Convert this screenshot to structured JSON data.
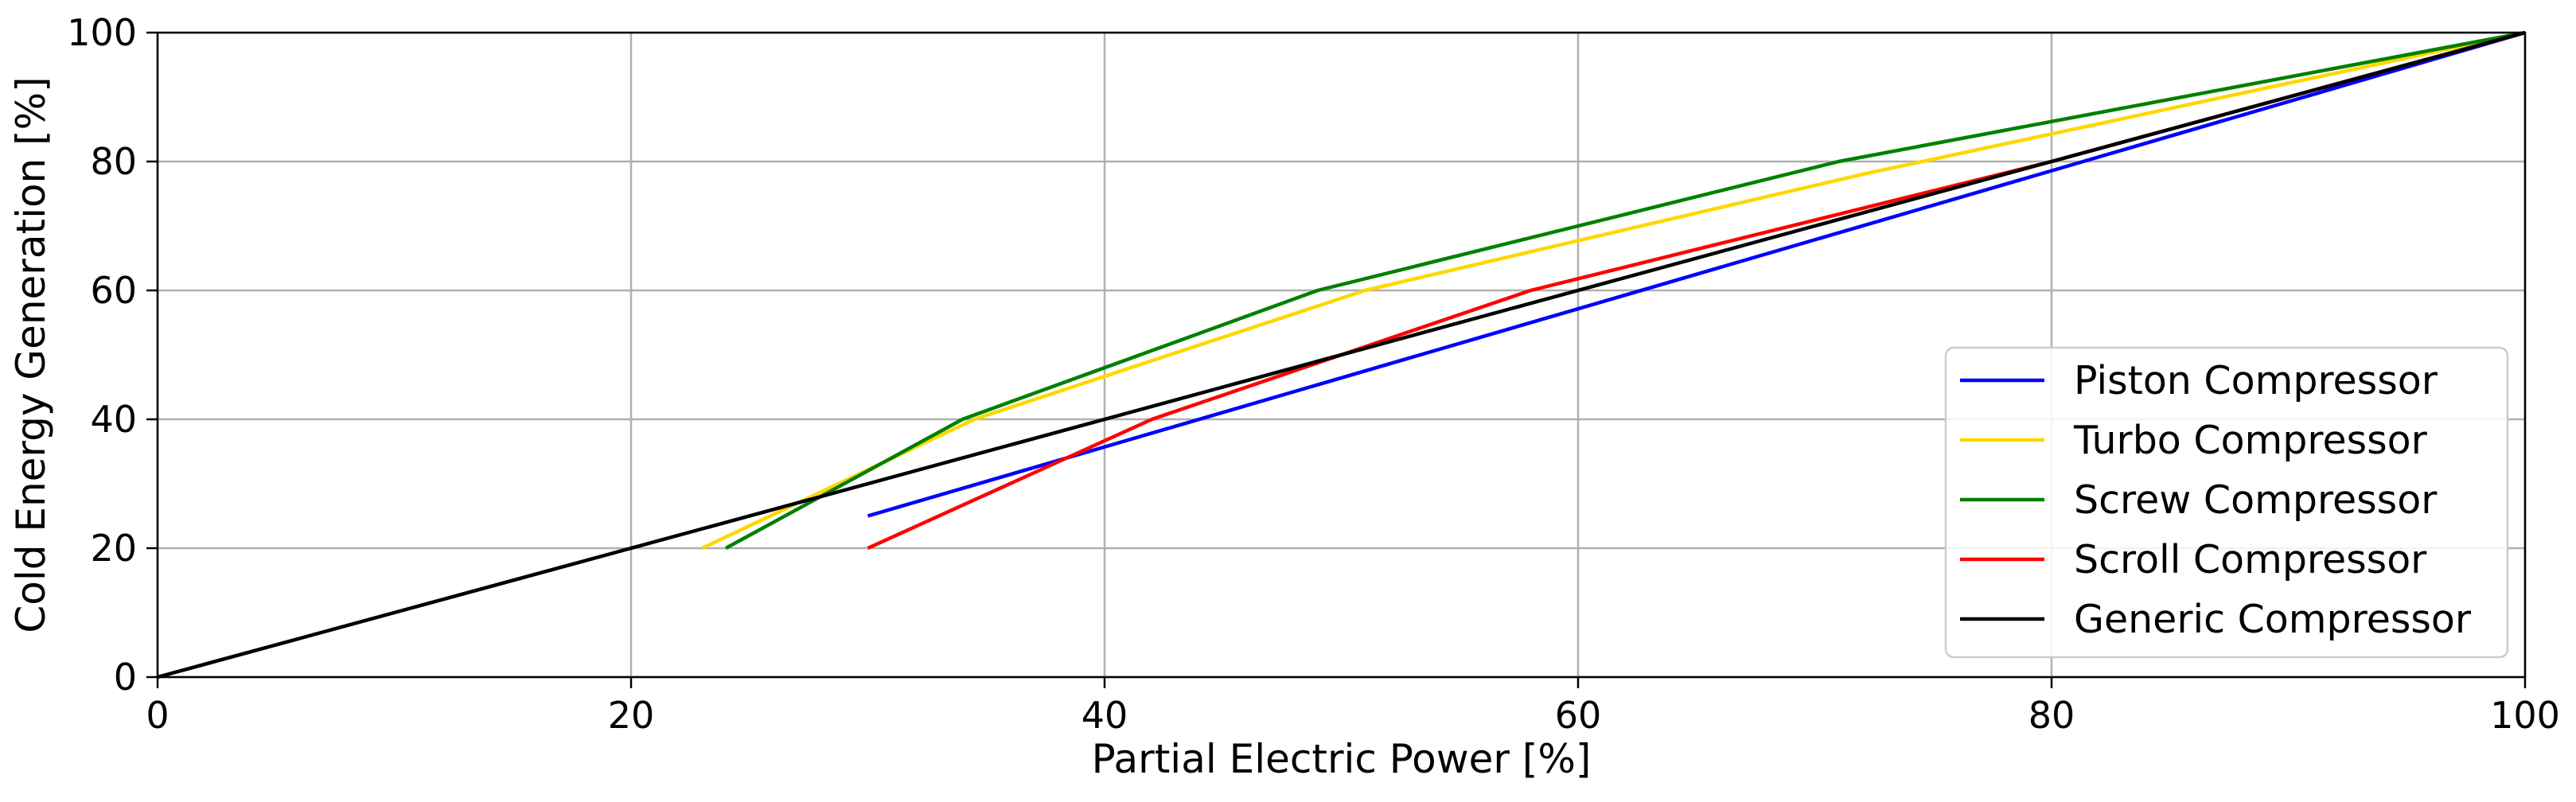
{
  "chart_data": {
    "type": "line",
    "title": "",
    "xlabel": "Partial Electric Power [%]",
    "ylabel": "Cold Energy Generation [%]",
    "xlim": [
      0,
      100
    ],
    "ylim": [
      0,
      100
    ],
    "xticks": [
      0,
      20,
      40,
      60,
      80,
      100
    ],
    "yticks": [
      0,
      20,
      40,
      60,
      80,
      100
    ],
    "grid": true,
    "legend_position": "lower-right",
    "series": [
      {
        "name": "Piston Compressor",
        "color": "#0000ff",
        "x": [
          30,
          100
        ],
        "y": [
          25,
          100
        ]
      },
      {
        "name": "Turbo Compressor",
        "color": "#ffd700",
        "x": [
          23,
          34.5,
          51,
          72,
          100
        ],
        "y": [
          20,
          40,
          60,
          78,
          100
        ]
      },
      {
        "name": "Screw Compressor",
        "color": "#008000",
        "x": [
          24,
          34,
          49,
          71,
          100
        ],
        "y": [
          20,
          40,
          60,
          80,
          100
        ]
      },
      {
        "name": "Scroll Compressor",
        "color": "#ff0000",
        "x": [
          30,
          42,
          58,
          80,
          100
        ],
        "y": [
          20,
          40,
          60,
          80,
          100
        ]
      },
      {
        "name": "Generic Compressor",
        "color": "#000000",
        "x": [
          0,
          100
        ],
        "y": [
          0,
          100
        ]
      }
    ]
  }
}
